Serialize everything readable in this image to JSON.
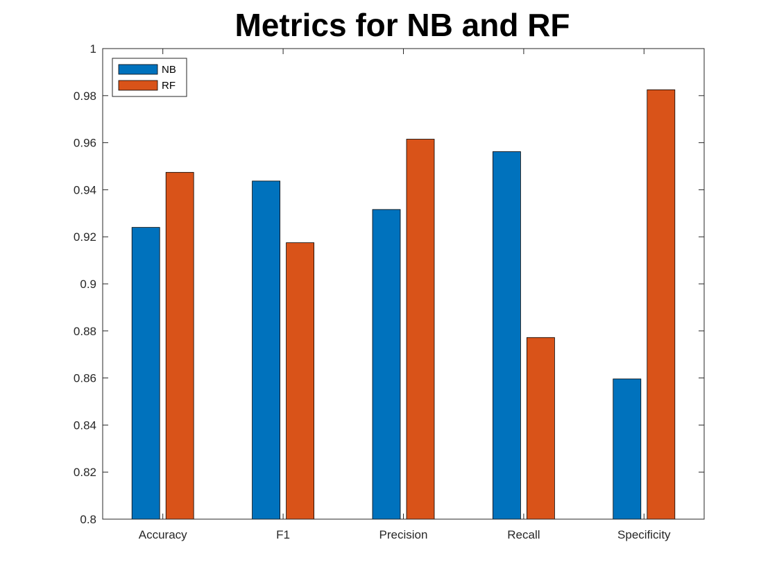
{
  "chart_data": {
    "type": "bar",
    "title": "Metrics for NB and RF",
    "xlabel": "",
    "ylabel": "",
    "categories": [
      "Accuracy",
      "F1",
      "Precision",
      "Recall",
      "Specificity"
    ],
    "series": [
      {
        "name": "NB",
        "color": "#0072BD",
        "values": [
          0.924,
          0.9437,
          0.9316,
          0.9562,
          0.8596
        ]
      },
      {
        "name": "RF",
        "color": "#D95319",
        "values": [
          0.9474,
          0.9175,
          0.9615,
          0.8772,
          0.9825
        ]
      }
    ],
    "ylim": [
      0.8,
      1.0
    ],
    "yticks": [
      0.8,
      0.82,
      0.84,
      0.86,
      0.88,
      0.9,
      0.92,
      0.94,
      0.96,
      0.98,
      1
    ],
    "ytick_labels": [
      "0.8",
      "0.82",
      "0.84",
      "0.86",
      "0.88",
      "0.9",
      "0.92",
      "0.94",
      "0.96",
      "0.98",
      "1"
    ],
    "grid": false,
    "legend_position": "top-left"
  }
}
